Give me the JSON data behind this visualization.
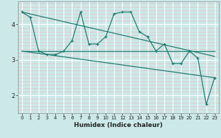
{
  "xlabel": "Humidex (Indice chaleur)",
  "bg_color": "#cce8e8",
  "line_color": "#1a7a6e",
  "grid_white": "#ffffff",
  "grid_pink": "#e8b4b4",
  "xlim": [
    -0.5,
    23.5
  ],
  "ylim": [
    1.5,
    4.65
  ],
  "yticks": [
    2,
    3,
    4
  ],
  "xticks": [
    0,
    1,
    2,
    3,
    4,
    5,
    6,
    7,
    8,
    9,
    10,
    11,
    12,
    13,
    14,
    15,
    16,
    17,
    18,
    19,
    20,
    21,
    22,
    23
  ],
  "series1_x": [
    0,
    1,
    2,
    3,
    4,
    5,
    6,
    7,
    8,
    9,
    10,
    11,
    12,
    13,
    14,
    15,
    16,
    17,
    18,
    19,
    20,
    21,
    22,
    23
  ],
  "series1_y": [
    4.35,
    4.2,
    3.25,
    3.15,
    3.15,
    3.25,
    3.55,
    4.35,
    3.45,
    3.45,
    3.65,
    4.3,
    4.35,
    4.35,
    3.8,
    3.65,
    3.25,
    3.45,
    2.9,
    2.9,
    3.25,
    3.05,
    1.75,
    2.5
  ],
  "trend1_x": [
    0,
    23
  ],
  "trend1_y": [
    4.35,
    3.1
  ],
  "trend2_x": [
    0,
    23
  ],
  "trend2_y": [
    3.25,
    3.25
  ],
  "trend3_x": [
    0,
    23
  ],
  "trend3_y": [
    3.25,
    2.5
  ]
}
